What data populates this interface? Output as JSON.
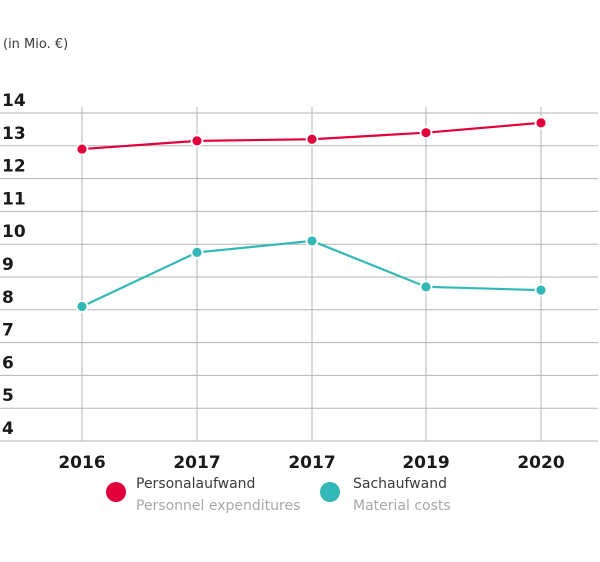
{
  "chart_data": {
    "type": "line",
    "unit_label": "(in Mio. €)",
    "categories": [
      "2016",
      "2017",
      "2017",
      "2019",
      "2020"
    ],
    "ylim": [
      4,
      14
    ],
    "yticks": [
      "14",
      "13",
      "12",
      "11",
      "10",
      "9",
      "8",
      "7",
      "6",
      "5",
      "4"
    ],
    "grid": true,
    "series": [
      {
        "name": "Personalaufwand",
        "subname": "Personnel expenditures",
        "color": "#e2003c",
        "values": [
          12.9,
          13.15,
          13.2,
          13.4,
          13.7
        ]
      },
      {
        "name": "Sachaufwand",
        "subname": "Material costs",
        "color": "#33b8b8",
        "values": [
          8.1,
          9.75,
          10.1,
          8.7,
          8.6
        ]
      }
    ]
  }
}
